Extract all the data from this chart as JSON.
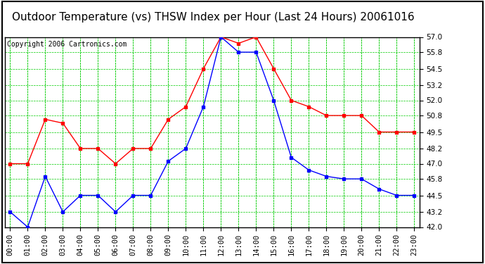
{
  "title": "Outdoor Temperature (vs) THSW Index per Hour (Last 24 Hours) 20061016",
  "copyright": "Copyright 2006 Cartronics.com",
  "hours": [
    "00:00",
    "01:00",
    "02:00",
    "03:00",
    "04:00",
    "05:00",
    "06:00",
    "07:00",
    "08:00",
    "09:00",
    "10:00",
    "11:00",
    "12:00",
    "13:00",
    "14:00",
    "15:00",
    "16:00",
    "17:00",
    "18:00",
    "19:00",
    "20:00",
    "21:00",
    "22:00",
    "23:00"
  ],
  "red_data": [
    47.0,
    47.0,
    50.5,
    50.2,
    48.2,
    48.2,
    47.0,
    48.2,
    48.2,
    50.5,
    51.5,
    54.5,
    57.0,
    56.5,
    57.0,
    54.5,
    52.0,
    51.5,
    50.8,
    50.8,
    50.8,
    49.5,
    49.5,
    49.5
  ],
  "blue_data": [
    43.2,
    42.0,
    46.0,
    43.2,
    44.5,
    44.5,
    43.2,
    44.5,
    44.5,
    47.2,
    48.2,
    51.5,
    57.0,
    55.8,
    55.8,
    52.0,
    47.5,
    46.5,
    46.0,
    45.8,
    45.8,
    45.0,
    44.5,
    44.5
  ],
  "red_color": "#FF0000",
  "blue_color": "#0000FF",
  "bg_color": "#FFFFFF",
  "plot_bg": "#FFFFFF",
  "grid_color": "#00CC00",
  "ymin": 42.0,
  "ymax": 57.0,
  "yticks": [
    42.0,
    43.2,
    44.5,
    45.8,
    47.0,
    48.2,
    49.5,
    50.8,
    52.0,
    53.2,
    54.5,
    55.8,
    57.0
  ],
  "title_fontsize": 11,
  "copyright_fontsize": 7,
  "tick_fontsize": 7.5,
  "marker": "s",
  "marker_size": 2.5,
  "line_width": 1.0
}
